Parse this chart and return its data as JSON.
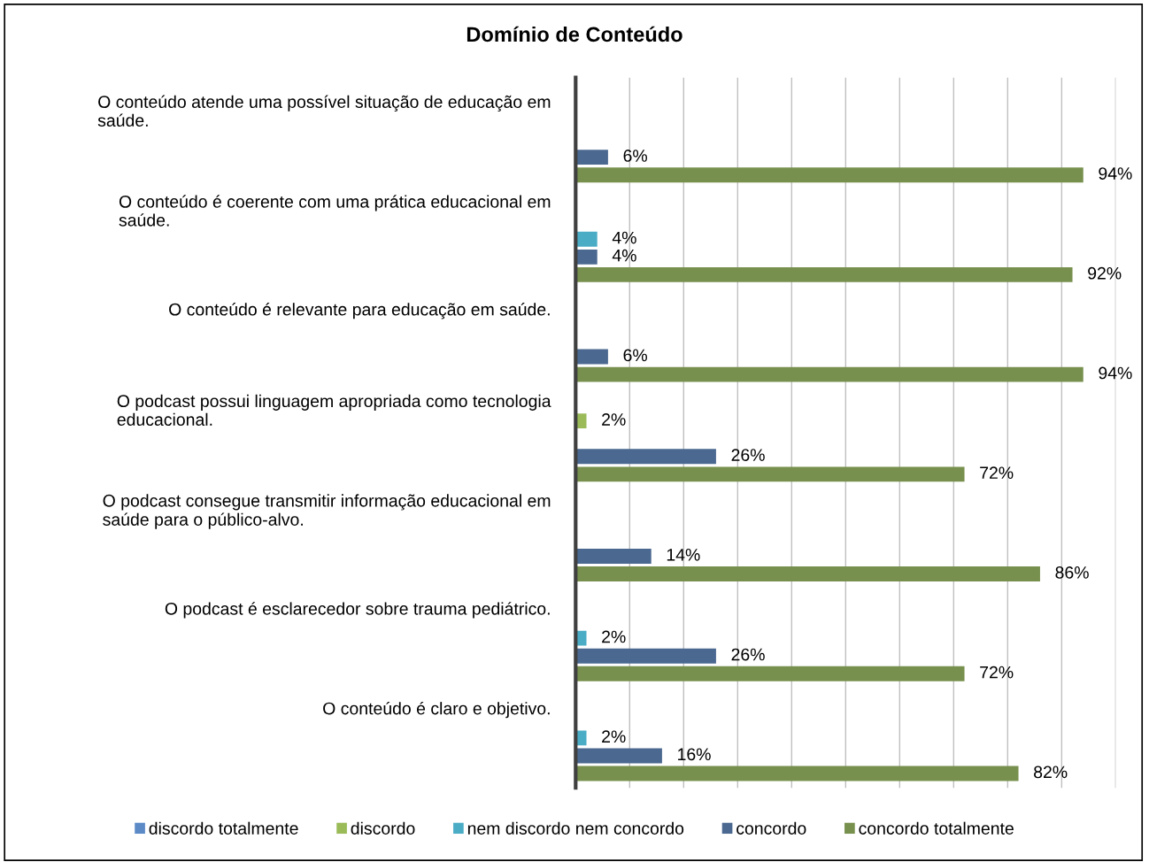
{
  "chart_data": {
    "type": "bar",
    "orientation": "horizontal",
    "title": "Domínio de Conteúdo",
    "categories": [
      "O conteúdo atende uma possível situação de educação em saúde.",
      "O conteúdo é coerente com uma prática educacional em saúde.",
      "O conteúdo é relevante para educação em saúde.",
      "O podcast possui linguagem apropriada como tecnologia educacional.",
      "O podcast consegue transmitir informação educacional em saúde para o público-alvo.",
      "O podcast é esclarecedor sobre trauma pediátrico.",
      "O conteúdo é claro e objetivo."
    ],
    "series": [
      {
        "name": "discordo totalmente",
        "color": "#5b8ac6",
        "values": [
          null,
          null,
          null,
          null,
          null,
          null,
          null
        ],
        "value_labels": [
          null,
          null,
          null,
          null,
          null,
          null,
          null
        ]
      },
      {
        "name": "discordo",
        "color": "#9bbb59",
        "values": [
          null,
          null,
          null,
          2,
          null,
          null,
          null
        ],
        "value_labels": [
          null,
          null,
          null,
          "2%",
          null,
          null,
          null
        ]
      },
      {
        "name": "nem discordo nem concordo",
        "color": "#4bacc6",
        "values": [
          null,
          4,
          null,
          null,
          null,
          2,
          2
        ],
        "value_labels": [
          null,
          "4%",
          null,
          null,
          null,
          "2%",
          "2%"
        ]
      },
      {
        "name": "concordo",
        "color": "#4a6890",
        "values": [
          6,
          4,
          6,
          26,
          14,
          26,
          16
        ],
        "value_labels": [
          "6%",
          "4%",
          "6%",
          "26%",
          "14%",
          "26%",
          "16%"
        ]
      },
      {
        "name": "concordo totalmente",
        "color": "#77904d",
        "values": [
          94,
          92,
          94,
          72,
          86,
          72,
          82
        ],
        "value_labels": [
          "94%",
          "92%",
          "94%",
          "72%",
          "86%",
          "72%",
          "82%"
        ]
      }
    ],
    "xlim": [
      0,
      100
    ],
    "xticks": [
      {
        "value": 0,
        "label": null
      },
      {
        "value": 10,
        "label": null
      },
      {
        "value": 20,
        "label": null
      },
      {
        "value": 30,
        "label": null
      },
      {
        "value": 40,
        "label": null
      },
      {
        "value": 50,
        "label": null
      },
      {
        "value": 60,
        "label": null
      },
      {
        "value": 70,
        "label": null
      },
      {
        "value": 80,
        "label": null
      },
      {
        "value": 90,
        "label": null
      },
      {
        "value": 100,
        "label": null
      }
    ],
    "tick_labels": "y",
    "grid": "x",
    "legend": "bottom"
  }
}
